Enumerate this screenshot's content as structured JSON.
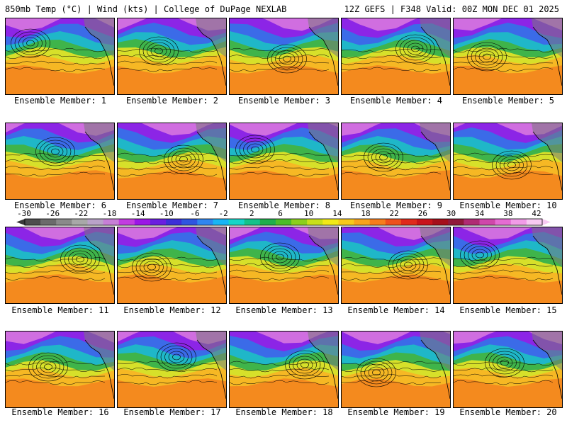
{
  "header": {
    "left": "850mb Temp (°C) | Wind (kts) | College of DuPage NEXLAB",
    "right": "12Z GEFS | F348 Valid: 00Z MON DEC 01 2025"
  },
  "panels": [
    {
      "label": "Ensemble Member: 1"
    },
    {
      "label": "Ensemble Member: 2"
    },
    {
      "label": "Ensemble Member: 3"
    },
    {
      "label": "Ensemble Member: 4"
    },
    {
      "label": "Ensemble Member: 5"
    },
    {
      "label": "Ensemble Member: 6"
    },
    {
      "label": "Ensemble Member: 7"
    },
    {
      "label": "Ensemble Member: 8"
    },
    {
      "label": "Ensemble Member: 9"
    },
    {
      "label": "Ensemble Member: 10"
    },
    {
      "label": "Ensemble Member: 11"
    },
    {
      "label": "Ensemble Member: 12"
    },
    {
      "label": "Ensemble Member: 13"
    },
    {
      "label": "Ensemble Member: 14"
    },
    {
      "label": "Ensemble Member: 15"
    },
    {
      "label": "Ensemble Member: 16"
    },
    {
      "label": "Ensemble Member: 17"
    },
    {
      "label": "Ensemble Member: 18"
    },
    {
      "label": "Ensemble Member: 19"
    },
    {
      "label": "Ensemble Member: 20"
    }
  ],
  "colorbar": {
    "ticks": [
      "-30",
      "-26",
      "-22",
      "-18",
      "-14",
      "-10",
      "-6",
      "-2",
      "2",
      "6",
      "10",
      "14",
      "18",
      "22",
      "26",
      "30",
      "34",
      "38",
      "42"
    ],
    "colors": [
      "#4d4d4d",
      "#6b6b6b",
      "#8a8a8a",
      "#a8a8a8",
      "#b9a2c9",
      "#c77fd6",
      "#c23ce0",
      "#9b17e6",
      "#6a1ee0",
      "#3d2fd8",
      "#2f55e0",
      "#2f86f0",
      "#19b5f5",
      "#16d6c8",
      "#15c28a",
      "#1fae4c",
      "#4cbc2a",
      "#8bcf1c",
      "#c8e01a",
      "#f1ea18",
      "#f7c91a",
      "#f8a41c",
      "#f67d1d",
      "#ee511d",
      "#e02a1c",
      "#c8141a",
      "#a50f1a",
      "#901a3b",
      "#b02b74",
      "#cf47aa",
      "#e56cd3",
      "#f19be7",
      "#f7c9f2"
    ]
  },
  "palette": {
    "far_north": "#d06ee0",
    "north": "#8c25e6",
    "mid_north": "#3b6be8",
    "mid": "#1fb7c8",
    "green": "#3fb44a",
    "yellow": "#d7e02a",
    "south": "#f6b824",
    "far_south": "#f48a1e",
    "land_gray": "#7a7a7a"
  }
}
